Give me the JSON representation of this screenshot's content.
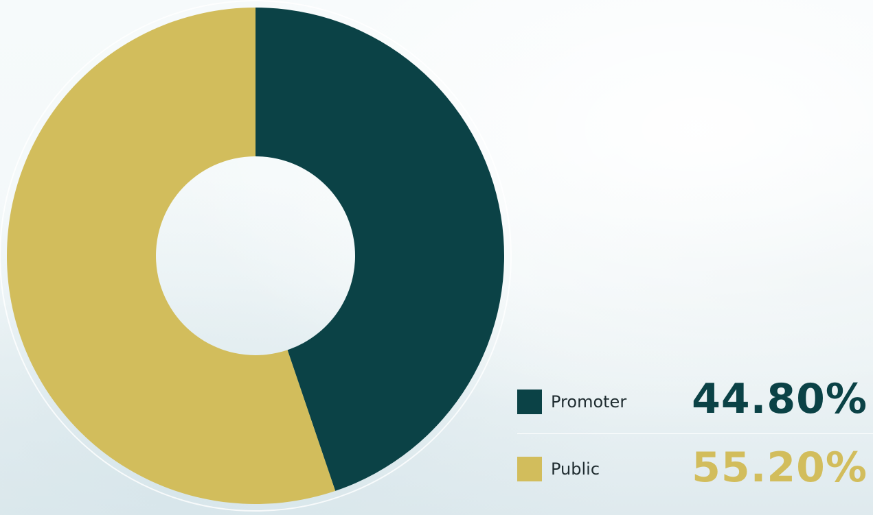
{
  "chart_data": {
    "type": "pie",
    "donut": true,
    "start_angle_deg": 0,
    "direction": "clockwise",
    "categories": [
      "Promoter",
      "Public"
    ],
    "values": [
      44.8,
      55.2
    ],
    "unit": "%",
    "colors": [
      "#0b4246",
      "#d2bd5c"
    ],
    "legend_position": "bottom-right"
  },
  "legend": [
    {
      "label": "Promoter",
      "value_text": "44.80%",
      "color": "#0b4246"
    },
    {
      "label": "Public",
      "value_text": "55.20%",
      "color": "#d2bd5c"
    }
  ]
}
